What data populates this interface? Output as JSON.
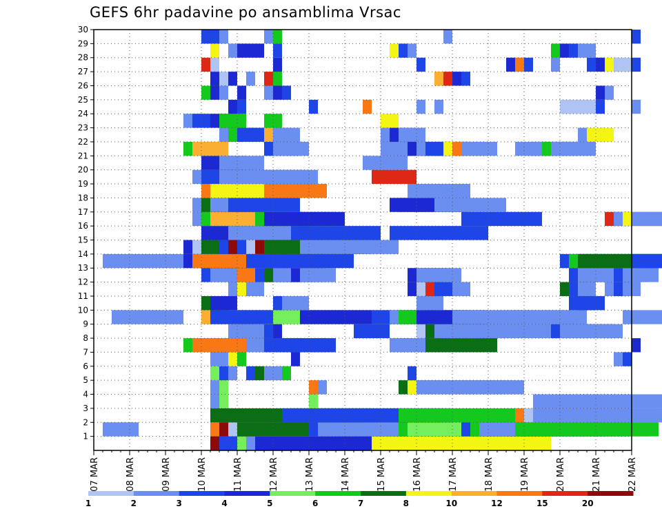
{
  "title": "GEFS 6hr padavine po ansamblima Vrsac",
  "chart_data": {
    "type": "heatmap",
    "title": "GEFS 6hr padavine po ansamblima Vrsac",
    "x_ticks": [
      "07 MAR",
      "08 MAR",
      "09 MAR",
      "10 MAR",
      "11 MAR",
      "12 MAR",
      "13 MAR",
      "14 MAR",
      "15 MAR",
      "16 MAR",
      "17 MAR",
      "18 MAR",
      "19 MAR",
      "20 MAR",
      "21 MAR",
      "22 MAR"
    ],
    "y_ticks": [
      1,
      2,
      3,
      4,
      5,
      6,
      7,
      8,
      9,
      10,
      11,
      12,
      13,
      14,
      15,
      16,
      17,
      18,
      19,
      20,
      21,
      22,
      23,
      24,
      25,
      26,
      27,
      28,
      29,
      30
    ],
    "ylim": [
      0,
      30
    ],
    "x_step": "6hr",
    "grid": true,
    "colorbar": {
      "labels": [
        "1",
        "2",
        "3",
        "4",
        "5",
        "6",
        "7",
        "8",
        "10",
        "12",
        "15",
        "20"
      ],
      "colors": [
        "#b0c4f4",
        "#6a8ff0",
        "#1e46e6",
        "#1c28d2",
        "#74ee5c",
        "#14c81e",
        "#0a6e14",
        "#f5f514",
        "#faaf32",
        "#f77814",
        "#dc2814",
        "#8c0a0a"
      ]
    },
    "legend_position": "bottom",
    "cells": [
      [
        0,
        13,
        3,
        2
      ],
      [
        0,
        13,
        4,
        5
      ],
      [
        0,
        13,
        5,
        11
      ],
      [
        0,
        14,
        12,
        2
      ],
      [
        0,
        16,
        14,
        3
      ],
      [
        0,
        16,
        17,
        4
      ],
      [
        0,
        17,
        16,
        1
      ],
      [
        0,
        18,
        17,
        3
      ],
      [
        0,
        31,
        20,
        7
      ],
      [
        1,
        1,
        4,
        1
      ],
      [
        1,
        13,
        14,
        9
      ],
      [
        1,
        14,
        14,
        11
      ],
      [
        1,
        15,
        14,
        12
      ],
      [
        1,
        16,
        14,
        6
      ],
      [
        1,
        24,
        14,
        2
      ],
      [
        1,
        25,
        14,
        1
      ],
      [
        1,
        33,
        14,
        1
      ],
      [
        1,
        34,
        14,
        5
      ],
      [
        1,
        35,
        14,
        4
      ],
      [
        1,
        41,
        16,
        2
      ],
      [
        1,
        42,
        16,
        5
      ],
      [
        1,
        43,
        16,
        1
      ],
      [
        1,
        46,
        14,
        1
      ],
      [
        1,
        47,
        15,
        5
      ],
      [
        1,
        48,
        15,
        5
      ],
      [
        2,
        13,
        18,
        6
      ],
      [
        2,
        21,
        18,
        2
      ],
      [
        2,
        22,
        18,
        2
      ],
      [
        2,
        34,
        17,
        5
      ],
      [
        2,
        47,
        16,
        9
      ],
      [
        2,
        48,
        16,
        12
      ],
      [
        2,
        49,
        16,
        1
      ],
      [
        2,
        52,
        15,
        1
      ],
      [
        3,
        13,
        0,
        1
      ],
      [
        3,
        14,
        0,
        4
      ],
      [
        3,
        24,
        0,
        4
      ],
      [
        3,
        49,
        15,
        1
      ],
      [
        4,
        13,
        0,
        1
      ],
      [
        4,
        14,
        0,
        4
      ],
      [
        4,
        24,
        0,
        9
      ],
      [
        4,
        25,
        0,
        1
      ],
      [
        4,
        34,
        12,
        6
      ],
      [
        4,
        35,
        12,
        7
      ],
      [
        4,
        36,
        12,
        1
      ],
      [
        5,
        13,
        0,
        4
      ],
      [
        5,
        14,
        0,
        2
      ],
      [
        5,
        15,
        0,
        1
      ],
      [
        5,
        17,
        0,
        2
      ],
      [
        5,
        18,
        0,
        6
      ],
      [
        5,
        19,
        0,
        1
      ],
      [
        5,
        20,
        0,
        1
      ],
      [
        5,
        21,
        0,
        5
      ],
      [
        5,
        35,
        0,
        2
      ],
      [
        6,
        13,
        1,
        1
      ],
      [
        6,
        14,
        1,
        1
      ],
      [
        6,
        15,
        1,
        7
      ],
      [
        6,
        16,
        1,
        5
      ],
      [
        6,
        22,
        1,
        3
      ],
      [
        6,
        58,
        0,
        1
      ],
      [
        6,
        59,
        0,
        2
      ],
      [
        7,
        10,
        6,
        5
      ],
      [
        7,
        11,
        6,
        9
      ],
      [
        7,
        17,
        7,
        1
      ],
      [
        7,
        18,
        7,
        1
      ],
      [
        7,
        19,
        7,
        2
      ],
      [
        7,
        20,
        7,
        2
      ],
      [
        7,
        33,
        6,
        1
      ],
      [
        7,
        34,
        6,
        1
      ],
      [
        7,
        37,
        8,
        6
      ],
      [
        7,
        60,
        0,
        3
      ],
      [
        8,
        15,
        3,
        1
      ],
      [
        8,
        16,
        3,
        1
      ],
      [
        8,
        19,
        1,
        2
      ],
      [
        8,
        20,
        1,
        3
      ],
      [
        8,
        29,
        4,
        2
      ],
      [
        8,
        36,
        7,
        12
      ],
      [
        8,
        37,
        7,
        6
      ],
      [
        8,
        38,
        7,
        1
      ],
      [
        8,
        39,
        7,
        1
      ],
      [
        8,
        45,
        7,
        1
      ],
      [
        8,
        51,
        7,
        2
      ],
      [
        8,
        52,
        7,
        1
      ],
      [
        9,
        2,
        8,
        1
      ],
      [
        9,
        12,
        8,
        8
      ],
      [
        9,
        13,
        8,
        2
      ],
      [
        9,
        20,
        8,
        4
      ],
      [
        9,
        23,
        8,
        3
      ],
      [
        9,
        31,
        8,
        2
      ],
      [
        9,
        33,
        8,
        1
      ],
      [
        9,
        34,
        8,
        5
      ],
      [
        9,
        36,
        8,
        3
      ],
      [
        9,
        40,
        8,
        1
      ],
      [
        9,
        46,
        8,
        1
      ],
      [
        9,
        47,
        8,
        1
      ],
      [
        9,
        59,
        8,
        1
      ],
      [
        10,
        12,
        3,
        6
      ],
      [
        10,
        13,
        3,
        3
      ],
      [
        10,
        20,
        3,
        2
      ],
      [
        10,
        21,
        3,
        1
      ],
      [
        10,
        36,
        3,
        1
      ],
      [
        10,
        53,
        3,
        2
      ],
      [
        10,
        54,
        3,
        2
      ],
      [
        11,
        15,
        2,
        1
      ],
      [
        11,
        16,
        2,
        7
      ],
      [
        11,
        17,
        2,
        1
      ],
      [
        11,
        35,
        2,
        3
      ],
      [
        11,
        36,
        2,
        12
      ],
      [
        11,
        37,
        2,
        10
      ],
      [
        11,
        38,
        2,
        2
      ],
      [
        11,
        40,
        2,
        1
      ],
      [
        11,
        52,
        2,
        6
      ],
      [
        11,
        53,
        2,
        2
      ],
      [
        11,
        54,
        2,
        1
      ],
      [
        11,
        57,
        2,
        1
      ],
      [
        11,
        58,
        2,
        2
      ],
      [
        11,
        59,
        2,
        1
      ],
      [
        12,
        12,
        4,
        2
      ],
      [
        12,
        13,
        4,
        1
      ],
      [
        12,
        16,
        4,
        9
      ],
      [
        12,
        18,
        4,
        2
      ],
      [
        12,
        19,
        4,
        6
      ],
      [
        12,
        20,
        4,
        1
      ],
      [
        12,
        21,
        4,
        1
      ],
      [
        12,
        22,
        4,
        3
      ],
      [
        12,
        23,
        4,
        1
      ],
      [
        12,
        35,
        4,
        3
      ],
      [
        12,
        36,
        4,
        1
      ],
      [
        12,
        37,
        4,
        1
      ],
      [
        12,
        53,
        4,
        2
      ],
      [
        12,
        54,
        4,
        1
      ],
      [
        12,
        56,
        4,
        1
      ],
      [
        12,
        57,
        4,
        1
      ],
      [
        12,
        58,
        4,
        2
      ],
      [
        12,
        59,
        4,
        1
      ],
      [
        13,
        1,
        12,
        1
      ],
      [
        13,
        10,
        12,
        3
      ],
      [
        13,
        11,
        12,
        9
      ],
      [
        13,
        17,
        12,
        2
      ],
      [
        13,
        52,
        12,
        2
      ],
      [
        13,
        53,
        12,
        5
      ],
      [
        13,
        54,
        12,
        6
      ],
      [
        13,
        60,
        12,
        2
      ],
      [
        14,
        10,
        12,
        3
      ],
      [
        14,
        11,
        12,
        12
      ],
      [
        14,
        12,
        12,
        6
      ],
      [
        14,
        14,
        12,
        2
      ],
      [
        14,
        15,
        12,
        11
      ],
      [
        14,
        16,
        12,
        2
      ],
      [
        14,
        17,
        12,
        12
      ],
      [
        14,
        18,
        12,
        11
      ],
      [
        14,
        19,
        12,
        6
      ],
      [
        14,
        23,
        11,
        1
      ],
      [
        15,
        12,
        11,
        3
      ],
      [
        15,
        33,
        11,
        2
      ],
      [
        15,
        12,
        10,
        5
      ],
      [
        15,
        12,
        9,
        3
      ],
      [
        15,
        15,
        10,
        1
      ],
      [
        15,
        22,
        10,
        2
      ],
      [
        16,
        11,
        9,
        1
      ],
      [
        16,
        12,
        9,
        5
      ],
      [
        16,
        13,
        9,
        8
      ],
      [
        16,
        18,
        9,
        5
      ],
      [
        16,
        19,
        9,
        3
      ],
      [
        16,
        41,
        9,
        2
      ],
      [
        16,
        57,
        9,
        10
      ],
      [
        16,
        58,
        9,
        1
      ],
      [
        16,
        59,
        9,
        7
      ],
      [
        16,
        60,
        9,
        1
      ],
      [
        17,
        11,
        8,
        1
      ],
      [
        17,
        12,
        8,
        6
      ],
      [
        17,
        13,
        8,
        1
      ],
      [
        17,
        15,
        8,
        2
      ],
      [
        17,
        33,
        8,
        3
      ],
      [
        17,
        34,
        8,
        3
      ],
      [
        17,
        38,
        8,
        1
      ],
      [
        18,
        12,
        7,
        9
      ],
      [
        18,
        13,
        7,
        7
      ],
      [
        18,
        19,
        7,
        9
      ],
      [
        18,
        35,
        7,
        1
      ],
      [
        19,
        11,
        6,
        1
      ],
      [
        19,
        12,
        6,
        2
      ],
      [
        19,
        14,
        6,
        1
      ],
      [
        19,
        15,
        6,
        1
      ],
      [
        19,
        19,
        5,
        1
      ],
      [
        19,
        20,
        5,
        1
      ],
      [
        19,
        31,
        5,
        10
      ],
      [
        20,
        12,
        5,
        3
      ],
      [
        20,
        14,
        5,
        1
      ],
      [
        20,
        30,
        5,
        1
      ],
      [
        21,
        10,
        4,
        5
      ],
      [
        21,
        11,
        4,
        8
      ],
      [
        21,
        19,
        4,
        2
      ],
      [
        21,
        20,
        4,
        1
      ],
      [
        21,
        32,
        4,
        1
      ],
      [
        21,
        33,
        4,
        1
      ],
      [
        21,
        34,
        4,
        1
      ],
      [
        21,
        35,
        4,
        3
      ],
      [
        21,
        36,
        4,
        1
      ],
      [
        21,
        37,
        4,
        2
      ],
      [
        21,
        38,
        4,
        2
      ],
      [
        21,
        39,
        4,
        7
      ],
      [
        21,
        40,
        4,
        9
      ],
      [
        21,
        41,
        4,
        1
      ],
      [
        21,
        47,
        4,
        1
      ],
      [
        21,
        48,
        4,
        1
      ],
      [
        21,
        49,
        4,
        1
      ],
      [
        21,
        50,
        4,
        5
      ],
      [
        21,
        51,
        4,
        1
      ],
      [
        21,
        52,
        4,
        1
      ],
      [
        22,
        14,
        3,
        1
      ],
      [
        22,
        15,
        3,
        5
      ],
      [
        22,
        16,
        3,
        2
      ],
      [
        22,
        19,
        3,
        8
      ],
      [
        22,
        20,
        3,
        1
      ],
      [
        22,
        32,
        3,
        1
      ],
      [
        22,
        33,
        3,
        3
      ],
      [
        22,
        34,
        3,
        1
      ],
      [
        22,
        54,
        3,
        1
      ],
      [
        22,
        55,
        3,
        7
      ],
      [
        23,
        10,
        2,
        1
      ],
      [
        23,
        11,
        2,
        2
      ],
      [
        23,
        13,
        2,
        3
      ],
      [
        23,
        14,
        2,
        5
      ],
      [
        23,
        15,
        2,
        5
      ],
      [
        23,
        19,
        2,
        5
      ],
      [
        23,
        32,
        2,
        7
      ],
      [
        24,
        15,
        1,
        3
      ],
      [
        24,
        16,
        1,
        2
      ],
      [
        24,
        24,
        1,
        2
      ],
      [
        24,
        30,
        1,
        9
      ],
      [
        24,
        36,
        1,
        1
      ],
      [
        24,
        38,
        1,
        1
      ],
      [
        24,
        52,
        1,
        12
      ],
      [
        24,
        53,
        1,
        13
      ],
      [
        24,
        54,
        1,
        13
      ],
      [
        24,
        55,
        1,
        12
      ],
      [
        24,
        56,
        1,
        2
      ],
      [
        24,
        60,
        1,
        1
      ],
      [
        25,
        12,
        0,
        5
      ],
      [
        25,
        13,
        0,
        3
      ],
      [
        25,
        14,
        0,
        1
      ],
      [
        25,
        16,
        0,
        3
      ],
      [
        25,
        19,
        0,
        1
      ],
      [
        25,
        20,
        0,
        3
      ],
      [
        25,
        21,
        0,
        2
      ],
      [
        25,
        56,
        0,
        3
      ],
      [
        25,
        57,
        0,
        1
      ],
      [
        26,
        13,
        0,
        3
      ],
      [
        26,
        14,
        0,
        12
      ],
      [
        26,
        15,
        0,
        3
      ],
      [
        26,
        17,
        0,
        1
      ],
      [
        26,
        19,
        0,
        10
      ],
      [
        26,
        20,
        0,
        5
      ],
      [
        26,
        38,
        0,
        8
      ],
      [
        26,
        39,
        0,
        10
      ],
      [
        26,
        40,
        0,
        3
      ],
      [
        26,
        41,
        0,
        2
      ],
      [
        27,
        12,
        0,
        10
      ],
      [
        27,
        13,
        0,
        13
      ],
      [
        27,
        20,
        0,
        3
      ],
      [
        27,
        36,
        0,
        2
      ],
      [
        27,
        46,
        0,
        3
      ],
      [
        27,
        47,
        0,
        9
      ],
      [
        27,
        48,
        0,
        2
      ],
      [
        27,
        51,
        0,
        1
      ],
      [
        27,
        55,
        0,
        2
      ],
      [
        27,
        56,
        0,
        3
      ],
      [
        27,
        57,
        0,
        7
      ],
      [
        27,
        58,
        0,
        12
      ],
      [
        27,
        59,
        0,
        13
      ],
      [
        27,
        60,
        0,
        2
      ],
      [
        28,
        13,
        0,
        7
      ],
      [
        28,
        15,
        0,
        1
      ],
      [
        28,
        16,
        0,
        3
      ],
      [
        28,
        17,
        0,
        3
      ],
      [
        28,
        18,
        0,
        3
      ],
      [
        28,
        20,
        0,
        2
      ],
      [
        28,
        33,
        0,
        7
      ],
      [
        28,
        34,
        0,
        2
      ],
      [
        28,
        35,
        0,
        1
      ],
      [
        28,
        51,
        0,
        5
      ],
      [
        28,
        52,
        0,
        3
      ],
      [
        28,
        53,
        0,
        2
      ],
      [
        28,
        54,
        0,
        1
      ],
      [
        28,
        55,
        0,
        1
      ],
      [
        29,
        12,
        0,
        2
      ],
      [
        29,
        13,
        0,
        2
      ],
      [
        29,
        14,
        0,
        1
      ],
      [
        29,
        19,
        0,
        1
      ],
      [
        29,
        20,
        0,
        5
      ],
      [
        29,
        39,
        0,
        1
      ],
      [
        29,
        60,
        0,
        2
      ]
    ]
  }
}
